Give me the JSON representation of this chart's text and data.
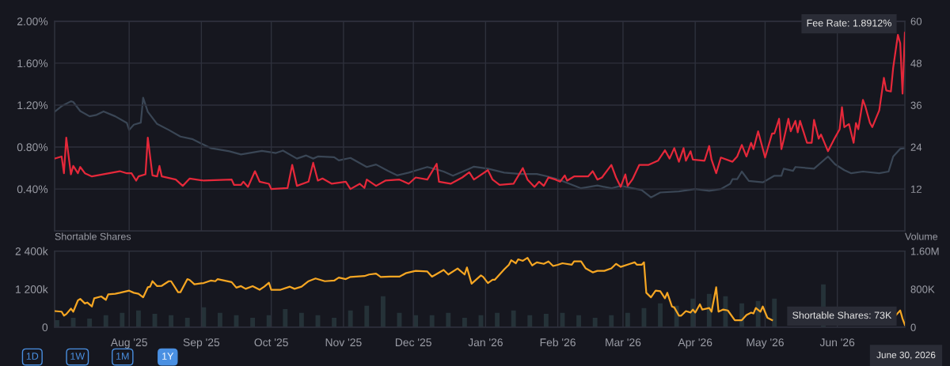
{
  "chart_data": [
    {
      "type": "line",
      "tick_labels": "y",
      "grid": true,
      "xlim": [
        "2025-06-30",
        "2026-06-30"
      ],
      "xticks": [
        {
          "value": "2025-08-01",
          "label": null
        },
        {
          "value": "2025-09-01",
          "label": null
        },
        {
          "value": "2025-10-01",
          "label": null
        },
        {
          "value": "2025-11-01",
          "label": null
        },
        {
          "value": "2025-12-01",
          "label": null
        },
        {
          "value": "2026-01-01",
          "label": null
        },
        {
          "value": "2026-02-01",
          "label": null
        },
        {
          "value": "2026-03-01",
          "label": null
        },
        {
          "value": "2026-04-01",
          "label": null
        },
        {
          "value": "2026-05-01",
          "label": null
        },
        {
          "value": "2026-06-01",
          "label": null
        }
      ],
      "ylim": [
        0,
        2.0
      ],
      "yticks": [
        {
          "value": 0.4,
          "label": "0.40%"
        },
        {
          "value": 0.8,
          "label": "0.80%"
        },
        {
          "value": 1.2,
          "label": "1.20%"
        },
        {
          "value": 1.6,
          "label": "1.60%"
        },
        {
          "value": 2.0,
          "label": "2.00%"
        }
      ],
      "y2lim": [
        0,
        60
      ],
      "y2ticks": [
        12,
        24,
        36,
        48,
        60
      ],
      "annotations": [
        {
          "text": "Fee Rate: 1.8912%",
          "x": "2026-06-30",
          "y": 1.8912
        }
      ],
      "series": [
        {
          "color": "#3a4655",
          "axis": "y2",
          "x": [
            "2025-06-30",
            "2025-07-03",
            "2025-07-07",
            "2025-07-08",
            "2025-07-11",
            "2025-07-15",
            "2025-07-18",
            "2025-07-21",
            "2025-07-26",
            "2025-07-31",
            "2025-08-01",
            "2025-08-03",
            "2025-08-06",
            "2025-08-07",
            "2025-08-09",
            "2025-08-13",
            "2025-08-18",
            "2025-08-23",
            "2025-08-28",
            "2025-09-05",
            "2025-09-13",
            "2025-09-18",
            "2025-09-27",
            "2025-10-03",
            "2025-10-06",
            "2025-10-12",
            "2025-10-16",
            "2025-10-19",
            "2025-10-21",
            "2025-10-28",
            "2025-10-30",
            "2025-11-04",
            "2025-11-11",
            "2025-11-15",
            "2025-11-20",
            "2025-11-24",
            "2025-11-29",
            "2025-12-07",
            "2025-12-11",
            "2025-12-14",
            "2025-12-18",
            "2025-12-25",
            "2025-12-27",
            "2026-01-02",
            "2026-01-09",
            "2026-01-16",
            "2026-01-23",
            "2026-01-27",
            "2026-02-01",
            "2026-02-06",
            "2026-02-11",
            "2026-02-18",
            "2026-02-24",
            "2026-02-28",
            "2026-03-09",
            "2026-03-13",
            "2026-03-17",
            "2026-03-25",
            "2026-04-01",
            "2026-04-07",
            "2026-04-12",
            "2026-04-16",
            "2026-04-17",
            "2026-04-19",
            "2026-04-21",
            "2026-04-24",
            "2026-04-30",
            "2026-05-05",
            "2026-05-08",
            "2026-05-09",
            "2026-05-13",
            "2026-05-14",
            "2026-05-22",
            "2026-05-28",
            "2026-05-31",
            "2026-06-04",
            "2026-06-07",
            "2026-06-12",
            "2026-06-19",
            "2026-06-23",
            "2026-06-25",
            "2026-06-28",
            "2026-06-30"
          ],
          "values": [
            34.1,
            35.7,
            37.1,
            36.9,
            34.3,
            32.8,
            33.2,
            34.2,
            32.8,
            30.9,
            28.9,
            30.4,
            31.0,
            38.1,
            34.1,
            30.6,
            28.9,
            27.0,
            26.3,
            23.7,
            22.8,
            21.9,
            22.9,
            22.3,
            23.0,
            20.7,
            21.6,
            20.7,
            21.3,
            21.1,
            20.2,
            20.9,
            18.3,
            19.0,
            17.2,
            15.9,
            16.7,
            18.3,
            17.6,
            17.0,
            15.8,
            17.8,
            18.4,
            17.8,
            16.7,
            16.3,
            16.3,
            15.7,
            14.8,
            13.5,
            12.2,
            13.0,
            12.2,
            12.9,
            11.7,
            9.6,
            11.0,
            11.3,
            12.0,
            11.5,
            12.0,
            13.5,
            14.8,
            14.8,
            17.0,
            14.3,
            13.9,
            15.8,
            15.8,
            17.8,
            17.2,
            18.3,
            17.8,
            21.3,
            19.1,
            17.4,
            16.5,
            17.0,
            16.5,
            17.0,
            21.3,
            23.5,
            23.7
          ]
        },
        {
          "color": "#e5283a",
          "x": [
            "2025-06-30",
            "2025-07-03",
            "2025-07-04",
            "2025-07-05",
            "2025-07-07",
            "2025-07-08",
            "2025-07-10",
            "2025-07-11",
            "2025-07-13",
            "2025-07-16",
            "2025-07-28",
            "2025-07-31",
            "2025-08-02",
            "2025-08-04",
            "2025-08-05",
            "2025-08-08",
            "2025-08-09",
            "2025-08-11",
            "2025-08-13",
            "2025-08-14",
            "2025-08-15",
            "2025-08-21",
            "2025-08-24",
            "2025-08-27",
            "2025-09-02",
            "2025-09-14",
            "2025-09-15",
            "2025-09-18",
            "2025-09-19",
            "2025-09-21",
            "2025-09-24",
            "2025-09-26",
            "2025-09-30",
            "2025-10-01",
            "2025-10-08",
            "2025-10-10",
            "2025-10-12",
            "2025-10-17",
            "2025-10-19",
            "2025-10-21",
            "2025-10-23",
            "2025-10-27",
            "2025-11-02",
            "2025-11-04",
            "2025-11-08",
            "2025-11-10",
            "2025-11-11",
            "2025-11-15",
            "2025-11-19",
            "2025-11-25",
            "2025-11-29",
            "2025-12-02",
            "2025-12-07",
            "2025-12-11",
            "2025-12-12",
            "2025-12-17",
            "2025-12-22",
            "2025-12-25",
            "2025-12-27",
            "2026-01-02",
            "2026-01-04",
            "2026-01-07",
            "2026-01-13",
            "2026-01-17",
            "2026-01-19",
            "2026-01-22",
            "2026-01-24",
            "2026-01-26",
            "2026-01-28",
            "2026-01-31",
            "2026-02-02",
            "2026-02-04",
            "2026-02-05",
            "2026-02-08",
            "2026-02-14",
            "2026-02-16",
            "2026-02-18",
            "2026-02-20",
            "2026-02-24",
            "2026-02-26",
            "2026-02-28",
            "2026-03-02",
            "2026-03-03",
            "2026-03-05",
            "2026-03-08",
            "2026-03-12",
            "2026-03-16",
            "2026-03-19",
            "2026-03-21",
            "2026-03-23",
            "2026-03-25",
            "2026-03-27",
            "2026-03-28",
            "2026-03-30",
            "2026-03-31",
            "2026-04-05",
            "2026-04-07",
            "2026-04-08",
            "2026-04-10",
            "2026-04-12",
            "2026-04-17",
            "2026-04-19",
            "2026-04-21",
            "2026-04-23",
            "2026-04-25",
            "2026-04-26",
            "2026-04-28",
            "2026-05-01",
            "2026-05-04",
            "2026-05-05",
            "2026-05-07",
            "2026-05-08",
            "2026-05-09",
            "2026-05-11",
            "2026-05-12",
            "2026-05-14",
            "2026-05-15",
            "2026-05-16",
            "2026-05-19",
            "2026-05-21",
            "2026-05-22",
            "2026-05-24",
            "2026-05-25",
            "2026-05-28",
            "2026-05-31",
            "2026-06-02",
            "2026-06-03",
            "2026-06-04",
            "2026-06-06",
            "2026-06-08",
            "2026-06-09",
            "2026-06-10",
            "2026-06-12",
            "2026-06-13",
            "2026-06-15",
            "2026-06-16",
            "2026-06-19",
            "2026-06-21",
            "2026-06-22",
            "2026-06-24",
            "2026-06-25",
            "2026-06-27",
            "2026-06-28",
            "2026-06-29",
            "2026-06-30"
          ],
          "values": [
            0.69,
            0.71,
            0.55,
            0.89,
            0.54,
            0.62,
            0.55,
            0.61,
            0.55,
            0.52,
            0.57,
            0.55,
            0.55,
            0.48,
            0.52,
            0.54,
            0.89,
            0.53,
            0.52,
            0.62,
            0.52,
            0.49,
            0.43,
            0.5,
            0.48,
            0.49,
            0.44,
            0.44,
            0.47,
            0.42,
            0.57,
            0.47,
            0.45,
            0.4,
            0.41,
            0.63,
            0.43,
            0.47,
            0.65,
            0.48,
            0.5,
            0.45,
            0.47,
            0.4,
            0.45,
            0.41,
            0.49,
            0.43,
            0.48,
            0.49,
            0.45,
            0.51,
            0.49,
            0.64,
            0.47,
            0.45,
            0.51,
            0.56,
            0.49,
            0.58,
            0.49,
            0.44,
            0.45,
            0.6,
            0.49,
            0.42,
            0.47,
            0.43,
            0.51,
            0.49,
            0.47,
            0.53,
            0.48,
            0.52,
            0.52,
            0.57,
            0.49,
            0.51,
            0.63,
            0.51,
            0.42,
            0.54,
            0.43,
            0.49,
            0.63,
            0.63,
            0.67,
            0.77,
            0.69,
            0.79,
            0.66,
            0.79,
            0.67,
            0.76,
            0.68,
            0.67,
            0.81,
            0.68,
            0.55,
            0.7,
            0.66,
            0.71,
            0.82,
            0.71,
            0.84,
            0.78,
            0.95,
            0.7,
            0.93,
            0.93,
            1.07,
            0.78,
            0.87,
            1.07,
            0.95,
            1.05,
            0.94,
            1.05,
            0.84,
            0.84,
            1.06,
            0.88,
            0.92,
            0.76,
            0.89,
            0.97,
            1.18,
            0.99,
            1.02,
            0.84,
            1.03,
            0.97,
            1.25,
            1.19,
            1.03,
            0.99,
            1.15,
            1.46,
            1.34,
            1.33,
            1.56,
            1.87,
            1.79,
            1.31,
            1.8912
          ]
        }
      ]
    },
    {
      "type": "line",
      "grid": "x",
      "ylabel": "Shortable Shares",
      "y2label": "Volume",
      "xlim": [
        "2025-06-30",
        "2026-06-30"
      ],
      "xticks": [
        {
          "value": "2025-08-01",
          "label": "Aug '25"
        },
        {
          "value": "2025-09-01",
          "label": "Sep '25"
        },
        {
          "value": "2025-10-01",
          "label": "Oct '25"
        },
        {
          "value": "2025-11-01",
          "label": "Nov '25"
        },
        {
          "value": "2025-12-01",
          "label": "Dec '25"
        },
        {
          "value": "2026-01-01",
          "label": "Jan '26"
        },
        {
          "value": "2026-02-01",
          "label": "Feb '26"
        },
        {
          "value": "2026-03-01",
          "label": "Mar '26"
        },
        {
          "value": "2026-04-01",
          "label": "Apr '26"
        },
        {
          "value": "2026-05-01",
          "label": "May '26"
        },
        {
          "value": "2026-06-01",
          "label": "Jun '26"
        }
      ],
      "ylim": [
        0,
        2400
      ],
      "yticks": [
        0,
        {
          "value": 1200,
          "label": "1 200k"
        },
        {
          "value": 2400,
          "label": "2 400k"
        }
      ],
      "y2lim": [
        0,
        1600000
      ],
      "y2ticks": [
        0,
        {
          "value": 800000,
          "label": "800K"
        },
        {
          "value": 1600000,
          "label": "1.60M"
        }
      ],
      "xlabel": "June 30, 2026",
      "annotations": [
        {
          "text": "Shortable Shares: 73K",
          "x": "2026-06-30",
          "y": 73
        },
        "1D",
        "1W",
        "1M",
        "1Y"
      ],
      "series": [
        {
          "type": "bar",
          "axis": "y2",
          "color": "#253238",
          "x": [
            "2025-07-01",
            "2025-07-08",
            "2025-07-15",
            "2025-07-22",
            "2025-07-29",
            "2025-08-05",
            "2025-08-12",
            "2025-08-19",
            "2025-08-26",
            "2025-09-02",
            "2025-09-09",
            "2025-09-16",
            "2025-09-23",
            "2025-09-30",
            "2025-10-07",
            "2025-10-14",
            "2025-10-21",
            "2025-10-28",
            "2025-11-04",
            "2025-11-11",
            "2025-11-18",
            "2025-11-25",
            "2025-12-02",
            "2025-12-09",
            "2025-12-16",
            "2025-12-23",
            "2025-12-30",
            "2026-01-06",
            "2026-01-13",
            "2026-01-20",
            "2026-01-27",
            "2026-02-03",
            "2026-02-10",
            "2026-02-17",
            "2026-02-24",
            "2026-03-03",
            "2026-03-10",
            "2026-03-17",
            "2026-03-24",
            "2026-03-31",
            "2026-04-07",
            "2026-04-14",
            "2026-04-21",
            "2026-04-28",
            "2026-05-05",
            "2026-05-12",
            "2026-05-19",
            "2026-05-26"
          ],
          "values": [
            150000,
            200000,
            180000,
            250000,
            300000,
            350000,
            280000,
            250000,
            200000,
            420000,
            300000,
            250000,
            200000,
            250000,
            380000,
            300000,
            250000,
            200000,
            350000,
            450000,
            650000,
            300000,
            250000,
            250000,
            300000,
            200000,
            250000,
            300000,
            350000,
            250000,
            280000,
            300000,
            250000,
            200000,
            250000,
            300000,
            400000,
            500000,
            450000,
            600000,
            700000,
            650000,
            500000,
            550000,
            600000,
            null,
            null,
            900000
          ]
        },
        {
          "color": "#f5a623",
          "x": [
            "2025-06-30",
            "2025-07-03",
            "2025-07-04",
            "2025-07-05",
            "2025-07-07",
            "2025-07-08",
            "2025-07-10",
            "2025-07-11",
            "2025-07-13",
            "2025-07-14",
            "2025-07-16",
            "2025-07-17",
            "2025-07-20",
            "2025-07-22",
            "2025-07-23",
            "2025-07-26",
            "2025-07-28",
            "2025-08-01",
            "2025-08-03",
            "2025-08-05",
            "2025-08-07",
            "2025-08-09",
            "2025-08-10",
            "2025-08-11",
            "2025-08-13",
            "2025-08-15",
            "2025-08-18",
            "2025-08-19",
            "2025-08-22",
            "2025-08-23",
            "2025-08-26",
            "2025-08-27",
            "2025-08-29",
            "2025-09-02",
            "2025-09-05",
            "2025-09-07",
            "2025-09-08",
            "2025-09-14",
            "2025-09-16",
            "2025-09-18",
            "2025-09-20",
            "2025-09-23",
            "2025-09-26",
            "2025-09-28",
            "2025-09-30",
            "2025-10-01",
            "2025-10-05",
            "2025-10-09",
            "2025-10-11",
            "2025-10-14",
            "2025-10-17",
            "2025-10-20",
            "2025-10-24",
            "2025-10-28",
            "2025-10-30",
            "2025-11-02",
            "2025-11-04",
            "2025-11-10",
            "2025-11-12",
            "2025-11-15",
            "2025-11-17",
            "2025-11-21",
            "2025-11-25",
            "2025-11-28",
            "2025-12-02",
            "2025-12-07",
            "2025-12-09",
            "2025-12-14",
            "2025-12-16",
            "2025-12-20",
            "2025-12-23",
            "2025-12-24",
            "2025-12-26",
            "2025-12-30",
            "2025-12-31",
            "2026-01-02",
            "2026-01-04",
            "2026-01-05",
            "2026-01-07",
            "2026-01-09",
            "2026-01-11",
            "2026-01-12",
            "2026-01-14",
            "2026-01-15",
            "2026-01-17",
            "2026-01-19",
            "2026-01-21",
            "2026-01-23",
            "2026-01-26",
            "2026-01-28",
            "2026-01-30",
            "2026-02-01",
            "2026-02-03",
            "2026-02-07",
            "2026-02-08",
            "2026-02-11",
            "2026-02-13",
            "2026-02-16",
            "2026-02-18",
            "2026-02-21",
            "2026-02-24",
            "2026-02-26",
            "2026-02-28",
            "2026-03-04",
            "2026-03-06",
            "2026-03-07",
            "2026-03-09",
            "2026-03-10",
            "2026-03-11",
            "2026-03-13",
            "2026-03-15",
            "2026-03-17",
            "2026-03-19",
            "2026-03-20",
            "2026-03-22",
            "2026-03-23",
            "2026-03-25",
            "2026-03-26",
            "2026-03-28",
            "2026-03-30",
            "2026-03-31",
            "2026-04-01",
            "2026-04-03",
            "2026-04-04",
            "2026-04-07",
            "2026-04-08",
            "2026-04-10",
            "2026-04-11",
            "2026-04-13",
            "2026-04-15",
            "2026-04-18",
            "2026-04-21",
            "2026-04-23",
            "2026-04-25",
            "2026-04-26",
            "2026-04-27",
            "2026-04-29",
            "2026-04-30",
            "2026-05-02",
            "2026-05-04",
            "2026-05-20",
            "2026-06-26",
            "2026-06-28",
            "2026-06-29",
            "2026-06-30"
          ],
          "values": [
            509,
            490,
            365,
            413,
            586,
            490,
            845,
            893,
            749,
            778,
            653,
            912,
            970,
            864,
            1037,
            1056,
            1085,
            1152,
            1085,
            1056,
            941,
            1258,
            1277,
            1450,
            1296,
            1306,
            1450,
            1450,
            1104,
            1104,
            1517,
            1488,
            1354,
            1392,
            1469,
            1450,
            1517,
            1421,
            1248,
            1296,
            1210,
            1296,
            1181,
            1277,
            1402,
            1181,
            1181,
            1277,
            1210,
            1277,
            1450,
            1536,
            1450,
            1469,
            1565,
            1517,
            1584,
            1613,
            1661,
            1690,
            1584,
            1594,
            1594,
            1709,
            1776,
            1757,
            1594,
            1805,
            1661,
            1853,
            1661,
            1882,
            1373,
            1632,
            1584,
            1392,
            1498,
            1498,
            1661,
            1824,
            1968,
            2112,
            2016,
            2141,
            2093,
            2189,
            1949,
            2045,
            1997,
            2074,
            1930,
            1968,
            2016,
            1968,
            2074,
            2074,
            1853,
            1728,
            1776,
            1776,
            1853,
            1997,
            1901,
            1997,
            2045,
            1968,
            1968,
            2045,
            1085,
            941,
            1152,
            1133,
            912,
            1085,
            653,
            624,
            365,
            365,
            509,
            461,
            557,
            461,
            720,
            557,
            605,
            490,
            1258,
            490,
            557,
            528,
            221,
            221,
            384,
            461,
            432,
            605,
            490,
            653,
            298,
            221,
            null,
            365,
            528,
            269,
            73
          ]
        }
      ]
    }
  ]
}
